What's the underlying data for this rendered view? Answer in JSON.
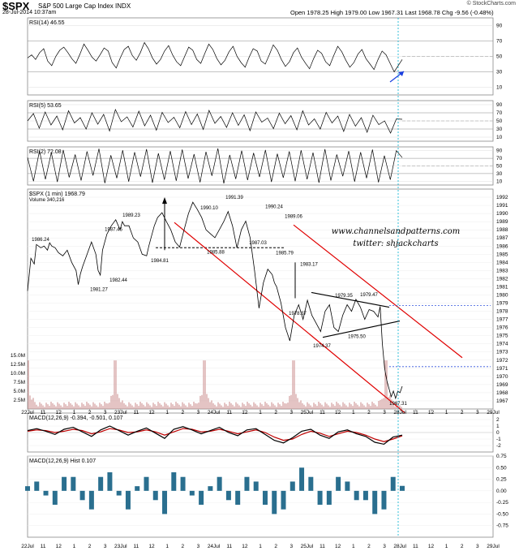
{
  "header": {
    "symbol": "$SPX",
    "name": "S&P 500 Large Cap Index",
    "exchange": "INDX",
    "timestamp": "28-Jul-2014 10:37am",
    "ohlc": "Open 1978.25   High 1979.00   Low 1967.31   Last 1968.78   Chg -9.56 (-0.48%)",
    "credit": "© StockCharts.com"
  },
  "watermark": {
    "line1": "www.channelsandpatterns.com",
    "line2": "twitter: shjackcharts"
  },
  "chart_data": [
    {
      "type": "line",
      "title": "RSI(14) 46.55",
      "ylim": [
        0,
        100
      ],
      "yticks": [
        10,
        30,
        50,
        70,
        90
      ],
      "values": [
        48,
        52,
        46,
        55,
        60,
        44,
        38,
        50,
        58,
        62,
        55,
        47,
        41,
        53,
        66,
        58,
        49,
        44,
        52,
        61,
        57,
        42,
        35,
        48,
        59,
        63,
        51,
        45,
        55,
        68,
        60,
        48,
        40,
        46,
        57,
        64,
        52,
        43,
        38,
        50,
        62,
        58,
        46,
        41,
        54,
        66,
        59,
        47,
        39,
        45,
        56,
        63,
        50,
        42,
        36,
        49,
        60,
        57,
        44,
        40,
        52,
        65,
        58,
        46,
        37,
        43,
        55,
        61,
        49,
        41,
        34,
        47,
        58,
        54,
        43,
        38,
        51,
        63,
        56,
        45,
        36,
        42,
        53,
        59,
        47,
        40,
        33,
        46,
        57,
        52,
        41,
        30,
        38,
        46
      ]
    },
    {
      "type": "line",
      "title": "RSI(5) 53.65",
      "ylim": [
        0,
        100
      ],
      "yticks": [
        10,
        30,
        50,
        70,
        90
      ],
      "values": [
        50,
        68,
        32,
        72,
        40,
        62,
        28,
        75,
        45,
        58,
        30,
        70,
        42,
        66,
        25,
        78,
        48,
        60,
        35,
        74,
        38,
        64,
        27,
        71,
        46,
        59,
        33,
        73,
        41,
        67,
        29,
        76,
        44,
        61,
        34,
        70,
        39,
        65,
        26,
        72,
        47,
        57,
        31,
        69,
        43,
        63,
        28,
        75,
        40,
        55,
        30,
        71,
        45,
        62,
        24,
        66,
        37,
        58,
        22,
        64,
        41,
        50,
        20,
        55,
        54
      ]
    },
    {
      "type": "line",
      "title": "RSI(2) 72.08",
      "ylim": [
        0,
        100
      ],
      "yticks": [
        10,
        30,
        50,
        70,
        90
      ],
      "values": [
        72,
        10,
        90,
        15,
        85,
        8,
        92,
        20,
        80,
        12,
        88,
        25,
        95,
        5,
        78,
        18,
        91,
        9,
        86,
        22,
        94,
        6,
        83,
        14,
        89,
        11,
        93,
        17,
        81,
        7,
        87,
        24,
        96,
        4,
        79,
        16,
        90,
        13,
        84,
        21,
        92,
        8,
        82,
        19,
        88,
        10,
        91,
        15,
        85,
        6,
        94,
        12,
        80,
        23,
        89,
        9,
        86,
        18,
        93,
        7,
        77,
        14,
        90,
        72
      ]
    },
    {
      "type": "line",
      "title": "$SPX (1 min) 1968.79",
      "subtitle": "Volume 340,216",
      "ylim": [
        1966,
        1993
      ],
      "yticks": [
        1967,
        1968,
        1969,
        1970,
        1971,
        1972,
        1973,
        1974,
        1975,
        1976,
        1977,
        1978,
        1979,
        1980,
        1981,
        1982,
        1983,
        1984,
        1985,
        1986,
        1987,
        1988,
        1989,
        1990,
        1991,
        1992
      ],
      "volume_ticks": [
        "2.5M",
        "5.0M",
        "7.5M",
        "10.0M",
        "12.5M",
        "15.0M"
      ],
      "volume_max": 15,
      "x": [
        0,
        3,
        6,
        8,
        12,
        15,
        18,
        20,
        22,
        25,
        28,
        32,
        36,
        40,
        44,
        46,
        48,
        50,
        54,
        58,
        62,
        64,
        66,
        68,
        72,
        76,
        80,
        84,
        86,
        88,
        92,
        96,
        100,
        104,
        108,
        110,
        112,
        115,
        118,
        122,
        126,
        130,
        134,
        138,
        142,
        146,
        150,
        154,
        158,
        162,
        166,
        170,
        174,
        178,
        182,
        186,
        190,
        194,
        198,
        202,
        206,
        210,
        214,
        218,
        222,
        224,
        226,
        230,
        234,
        238,
        242,
        246,
        250,
        254,
        258,
        262,
        266,
        270,
        274,
        278,
        282,
        286,
        290,
        294,
        298,
        302,
        306,
        310,
        314,
        318,
        320,
        322,
        324,
        326,
        328,
        330,
        332,
        334,
        336,
        338,
        340
      ],
      "values": [
        1980.5,
        1984.5,
        1983.8,
        1986.2,
        1985.8,
        1986.0,
        1985.5,
        1986.4,
        1986.0,
        1985.8,
        1985.2,
        1984.8,
        1985.5,
        1984.0,
        1983.0,
        1981.27,
        1982.6,
        1983.5,
        1985.0,
        1986.5,
        1985.0,
        1983.0,
        1982.44,
        1985.5,
        1987.46,
        1988.5,
        1989.23,
        1988.0,
        1989.0,
        1988.5,
        1988.5,
        1987.0,
        1986.5,
        1985.0,
        1984.81,
        1986.0,
        1987.0,
        1988.5,
        1989.5,
        1990.1,
        1989.0,
        1988.0,
        1986.5,
        1985.88,
        1988.0,
        1990.0,
        1991.39,
        1990.5,
        1989.5,
        1988.0,
        1987.5,
        1987.03,
        1988.0,
        1989.0,
        1990.24,
        1988.5,
        1985.79,
        1988.0,
        1989.06,
        1987.0,
        1983.0,
        1978.37,
        1981.5,
        1983.17,
        1982.5,
        1981.5,
        1981.0,
        1979.0,
        1976.0,
        1974.37,
        1977.5,
        1978.8,
        1977.0,
        1979.35,
        1977.5,
        1976.5,
        1975.5,
        1978.0,
        1978.8,
        1976.0,
        1975.5,
        1977.5,
        1978.8,
        1978.0,
        1979.47,
        1978.5,
        1977.0,
        1978.2,
        1978.0,
        1977.3,
        1978.6,
        1974.0,
        1971.0,
        1969.5,
        1968.5,
        1967.5,
        1968.2,
        1967.31,
        1968.2,
        1968.0,
        1968.79
      ],
      "annotations": [
        "1986.24",
        "1981.27",
        "1982.44",
        "1987.46",
        "1989.23",
        "1984.81",
        "1990.10",
        "1985.88",
        "1991.39",
        "1987.03",
        "1990.24",
        "1985.79",
        "1989.06",
        "1983.17",
        "1978.37",
        "1979.35",
        "1974.37",
        "1979.47",
        "1975.50",
        "1967.31"
      ]
    },
    {
      "type": "line",
      "title": "MACD(12,26,9) -0.394, -0.501, 0.107",
      "ylim": [
        -3,
        3
      ],
      "yticks": [
        -2,
        -1,
        0,
        1,
        2
      ],
      "series": [
        {
          "name": "MACD(12,26,9)",
          "values": [
            0.3,
            0.6,
            0.2,
            -0.3,
            0.5,
            0.8,
            0.1,
            -0.6,
            0.4,
            1.0,
            0.3,
            -0.4,
            0.2,
            0.7,
            -0.1,
            -0.9,
            0.5,
            0.9,
            0.4,
            -0.2,
            0.3,
            0.8,
            0.0,
            -0.5,
            0.4,
            0.6,
            -0.3,
            -1.2,
            -1.6,
            -0.8,
            0.2,
            0.5,
            -0.4,
            -0.9,
            0.1,
            0.4,
            -0.2,
            -0.6,
            -1.5,
            -1.8,
            -0.7,
            -0.394
          ]
        },
        {
          "name": "signal",
          "values": [
            0.2,
            0.4,
            0.3,
            0.0,
            0.2,
            0.5,
            0.3,
            -0.2,
            0.1,
            0.6,
            0.4,
            0.0,
            0.1,
            0.4,
            0.1,
            -0.4,
            0.1,
            0.6,
            0.5,
            0.1,
            0.2,
            0.5,
            0.2,
            -0.2,
            0.1,
            0.4,
            0.0,
            -0.7,
            -1.2,
            -1.0,
            -0.3,
            0.2,
            -0.1,
            -0.6,
            -0.2,
            0.2,
            0.0,
            -0.4,
            -1.0,
            -1.4,
            -1.0,
            -0.501
          ]
        }
      ]
    },
    {
      "type": "bar",
      "title": "MACD(12,26,9) Hist 0.107",
      "ylim": [
        -1.0,
        0.75
      ],
      "yticks": [
        0.75,
        0.5,
        0.25,
        0.0,
        -0.25,
        -0.5,
        -0.75
      ],
      "values": [
        0.1,
        0.2,
        -0.1,
        -0.3,
        0.3,
        0.3,
        -0.2,
        -0.4,
        0.3,
        0.4,
        -0.1,
        -0.4,
        0.1,
        0.3,
        -0.2,
        -0.5,
        0.4,
        0.3,
        -0.1,
        -0.3,
        0.1,
        0.3,
        -0.2,
        -0.3,
        0.3,
        0.2,
        -0.3,
        -0.5,
        -0.4,
        0.2,
        0.5,
        0.3,
        -0.3,
        -0.3,
        0.3,
        0.2,
        -0.2,
        -0.2,
        -0.5,
        -0.4,
        0.3,
        0.107
      ]
    }
  ],
  "x_axis": {
    "labels": [
      "22Jul",
      "11",
      "12",
      "1",
      "2",
      "3",
      "23Jul",
      "11",
      "12",
      "1",
      "2",
      "3",
      "24Jul",
      "11",
      "12",
      "1",
      "2",
      "3",
      "25Jul",
      "11",
      "12",
      "1",
      "2",
      "3",
      "28Jul",
      "11",
      "12",
      "1",
      "2",
      "3",
      "29Jul"
    ]
  }
}
